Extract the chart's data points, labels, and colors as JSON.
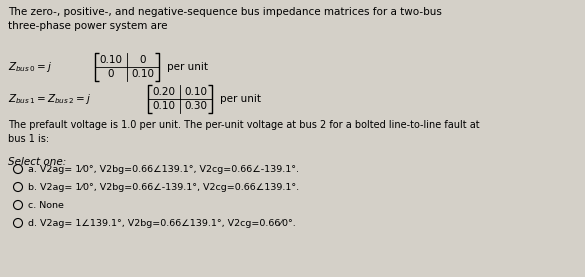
{
  "bg_color": "#d4d0c8",
  "text_color": "#000000",
  "title_text": "The zero-, positive-, and negative-sequence bus impedance matrices for a two-bus\nthree-phase power system are",
  "eq1_matrix": [
    [
      0.1,
      0
    ],
    [
      0,
      0.1
    ]
  ],
  "eq2_matrix": [
    [
      0.2,
      0.1
    ],
    [
      0.1,
      0.3
    ]
  ],
  "body_text": "The prefault voltage is 1.0 per unit. The per-unit voltage at bus 2 for a bolted line-to-line fault at\nbus 1 is:",
  "select_label": "Select one:",
  "options": [
    "a. V2ag= 1⁄0°, V2bg=0.66∠139.1°, V2cg=0.66∠-139.1°.",
    "b. V2ag= 1⁄0°, V2bg=0.66∠-139.1°, V2cg=0.66∠139.1°.",
    "c. None",
    "d. V2ag= 1∠139.1°, V2bg=0.66∠139.1°, V2cg=0.66⁄0°."
  ],
  "fs_title": 7.5,
  "fs_body": 7.0,
  "fs_opt": 6.8,
  "fs_mat": 7.5,
  "fs_label": 7.5,
  "fs_select": 7.5
}
